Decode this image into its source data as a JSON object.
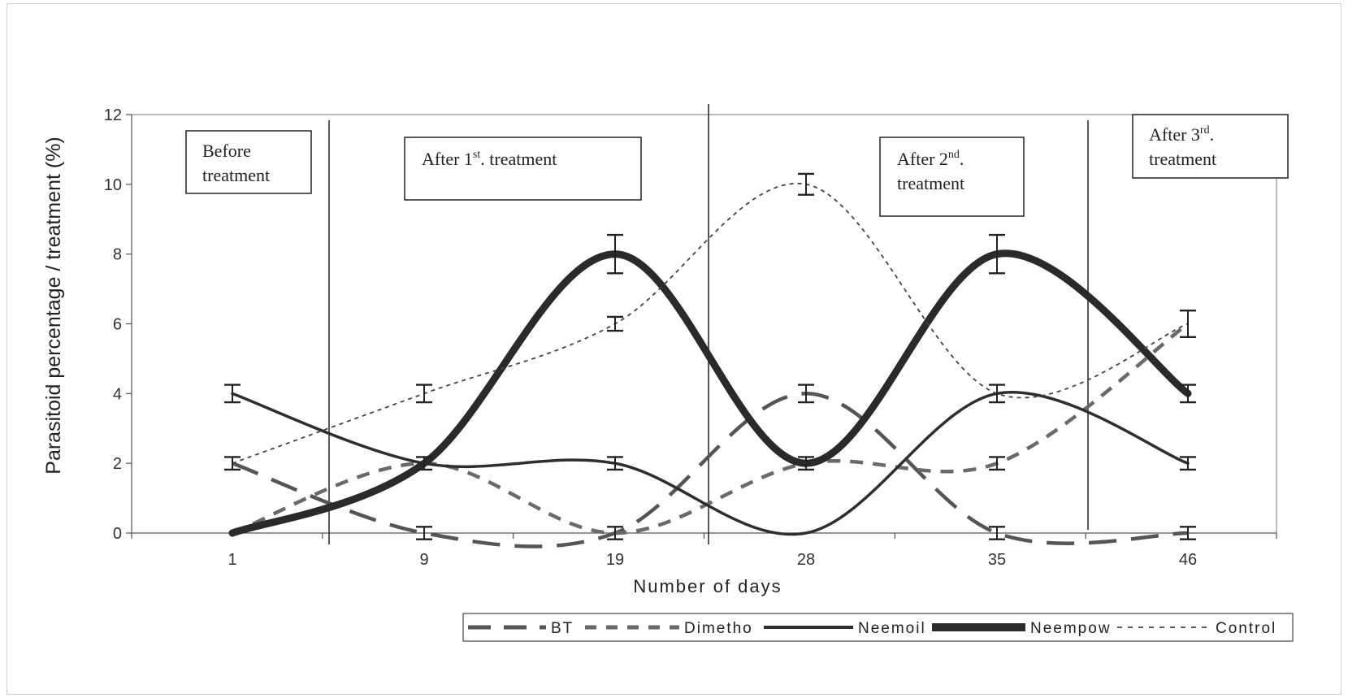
{
  "chart_data": {
    "type": "line",
    "xlabel": "Number of days",
    "ylabel": "Parasitoid percentage / treatment (%)",
    "categories": [
      "1",
      "9",
      "19",
      "28",
      "35",
      "46"
    ],
    "ylim": [
      0,
      12
    ],
    "yticks": [
      "0",
      "2",
      "4",
      "6",
      "8",
      "10",
      "12"
    ],
    "grid": false,
    "legend_position": "bottom",
    "smoothed": true,
    "series": [
      {
        "name": "BT",
        "values": [
          2,
          0,
          0,
          4,
          0,
          0
        ],
        "color": "#555555",
        "style": "long-dash"
      },
      {
        "name": "Dimetho",
        "values": [
          0,
          2,
          0,
          2,
          2,
          6
        ],
        "color": "#6a6a6a",
        "style": "dash"
      },
      {
        "name": "Neemoil",
        "values": [
          4,
          2,
          2,
          0,
          4,
          2
        ],
        "color": "#2e2e2e",
        "style": "solid"
      },
      {
        "name": "Neempow",
        "values": [
          0,
          2,
          8,
          2,
          8,
          4
        ],
        "color": "#2a2a2a",
        "style": "thick"
      },
      {
        "name": "Control",
        "values": [
          2,
          4,
          6,
          10,
          4,
          6
        ],
        "color": "#444444",
        "style": "dotted"
      }
    ],
    "error_bars": [
      {
        "category": "1",
        "value": 4,
        "err": 0.25
      },
      {
        "category": "1",
        "value": 2,
        "err": 0.18
      },
      {
        "category": "9",
        "value": 4,
        "err": 0.25
      },
      {
        "category": "9",
        "value": 2,
        "err": 0.18
      },
      {
        "category": "9",
        "value": 0,
        "err": 0.18
      },
      {
        "category": "19",
        "value": 8,
        "err": 0.55
      },
      {
        "category": "19",
        "value": 6,
        "err": 0.2
      },
      {
        "category": "19",
        "value": 2,
        "err": 0.18
      },
      {
        "category": "19",
        "value": 0,
        "err": 0.18
      },
      {
        "category": "28",
        "value": 10,
        "err": 0.3
      },
      {
        "category": "28",
        "value": 4,
        "err": 0.25
      },
      {
        "category": "28",
        "value": 2,
        "err": 0.18
      },
      {
        "category": "35",
        "value": 8,
        "err": 0.55
      },
      {
        "category": "35",
        "value": 4,
        "err": 0.25
      },
      {
        "category": "35",
        "value": 2,
        "err": 0.18
      },
      {
        "category": "35",
        "value": 0,
        "err": 0.18
      },
      {
        "category": "46",
        "value": 6,
        "err": 0.38
      },
      {
        "category": "46",
        "value": 4,
        "err": 0.25
      },
      {
        "category": "46",
        "value": 2,
        "err": 0.18
      },
      {
        "category": "46",
        "value": 0,
        "err": 0.18
      }
    ],
    "annotations": [
      {
        "lines": [
          "Before",
          "treatment"
        ]
      },
      {
        "lines": [
          "After 1st. treatment"
        ]
      },
      {
        "lines": [
          "After 2nd.",
          "treatment"
        ]
      },
      {
        "lines": [
          "After 3rd.",
          "treatment"
        ]
      }
    ]
  }
}
